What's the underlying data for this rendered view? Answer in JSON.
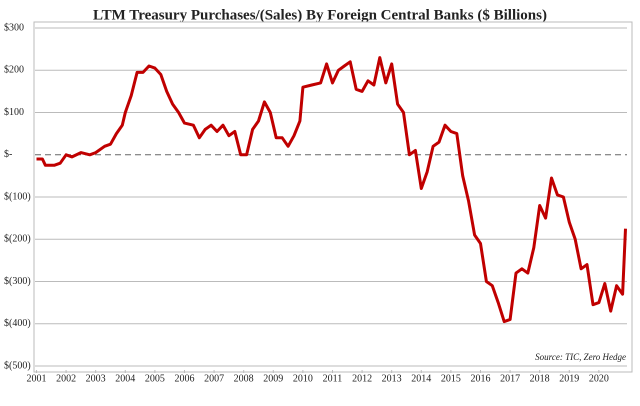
{
  "chart_data": {
    "type": "line",
    "title": "LTM Treasury Purchases/(Sales) By Foreign Central Banks ($ Billions)",
    "annotation": "Source: TIC, Zero Hedge",
    "xlim": [
      2000.95,
      2020.95
    ],
    "xticks": [
      2001,
      2002,
      2003,
      2004,
      2005,
      2006,
      2007,
      2008,
      2009,
      2010,
      2011,
      2012,
      2013,
      2014,
      2015,
      2016,
      2017,
      2018,
      2019,
      2020
    ],
    "ylim": [
      -500,
      300
    ],
    "yticks": [
      {
        "value": 300,
        "label": "$300"
      },
      {
        "value": 200,
        "label": "$200"
      },
      {
        "value": 100,
        "label": "$100"
      },
      {
        "value": 0,
        "label": "$-"
      },
      {
        "value": -100,
        "label": "$(100)"
      },
      {
        "value": -200,
        "label": "$(200)"
      },
      {
        "value": -300,
        "label": "$(300)"
      },
      {
        "value": -400,
        "label": "$(400)"
      },
      {
        "value": -500,
        "label": "$(500)"
      }
    ],
    "grid": true,
    "series": [
      {
        "name": "LTM Treasury Purchases/(Sales)",
        "color": "#c00000",
        "x": [
          2001.0,
          2001.2,
          2001.3,
          2001.6,
          2001.8,
          2002.0,
          2002.2,
          2002.5,
          2002.8,
          2003.0,
          2003.3,
          2003.5,
          2003.7,
          2003.9,
          2004.0,
          2004.2,
          2004.4,
          2004.6,
          2004.8,
          2005.0,
          2005.2,
          2005.4,
          2005.6,
          2005.8,
          2006.0,
          2006.3,
          2006.5,
          2006.7,
          2006.9,
          2007.1,
          2007.3,
          2007.5,
          2007.7,
          2007.9,
          2008.1,
          2008.3,
          2008.5,
          2008.7,
          2008.9,
          2009.1,
          2009.3,
          2009.5,
          2009.7,
          2009.9,
          2010.0,
          2010.3,
          2010.6,
          2010.8,
          2011.0,
          2011.2,
          2011.4,
          2011.6,
          2011.8,
          2012.0,
          2012.2,
          2012.4,
          2012.6,
          2012.8,
          2013.0,
          2013.2,
          2013.4,
          2013.6,
          2013.8,
          2014.0,
          2014.2,
          2014.4,
          2014.6,
          2014.8,
          2015.0,
          2015.2,
          2015.4,
          2015.6,
          2015.8,
          2016.0,
          2016.2,
          2016.4,
          2016.6,
          2016.8,
          2017.0,
          2017.2,
          2017.4,
          2017.6,
          2017.8,
          2018.0,
          2018.2,
          2018.4,
          2018.6,
          2018.8,
          2019.0,
          2019.2,
          2019.4,
          2019.6,
          2019.8,
          2020.0,
          2020.2,
          2020.4,
          2020.6,
          2020.8,
          2020.9
        ],
        "values": [
          -10,
          -10,
          -25,
          -25,
          -20,
          0,
          -5,
          5,
          0,
          5,
          20,
          25,
          50,
          70,
          100,
          140,
          195,
          195,
          210,
          205,
          190,
          150,
          120,
          100,
          75,
          70,
          40,
          60,
          70,
          55,
          70,
          45,
          55,
          0,
          0,
          60,
          80,
          125,
          100,
          40,
          40,
          20,
          45,
          80,
          160,
          165,
          170,
          215,
          170,
          200,
          210,
          220,
          155,
          150,
          175,
          165,
          230,
          170,
          215,
          120,
          100,
          0,
          10,
          -80,
          -40,
          20,
          30,
          70,
          55,
          50,
          -50,
          -110,
          -190,
          -210,
          -300,
          -310,
          -350,
          -395,
          -390,
          -280,
          -270,
          -280,
          -220,
          -120,
          -150,
          -55,
          -95,
          -100,
          -160,
          -200,
          -270,
          -260,
          -355,
          -350,
          -305,
          -370,
          -310,
          -330,
          -175
        ]
      }
    ]
  }
}
